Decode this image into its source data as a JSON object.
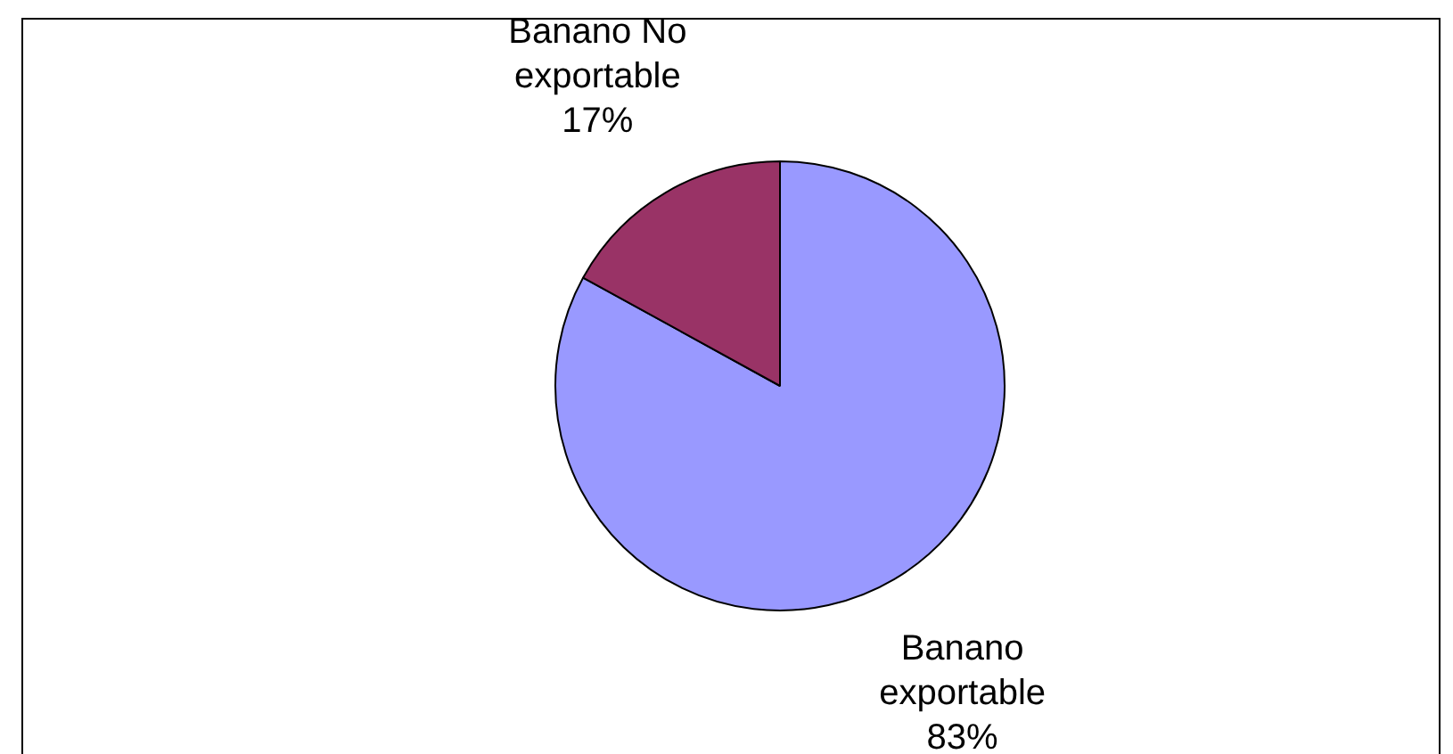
{
  "chart_data": {
    "type": "pie",
    "categories": [
      "Banano exportable",
      "Banano No exportable"
    ],
    "values": [
      83,
      17
    ],
    "colors": [
      "#9999ff",
      "#993366"
    ],
    "value_labels": [
      "83%",
      "17%"
    ],
    "legend": false
  }
}
